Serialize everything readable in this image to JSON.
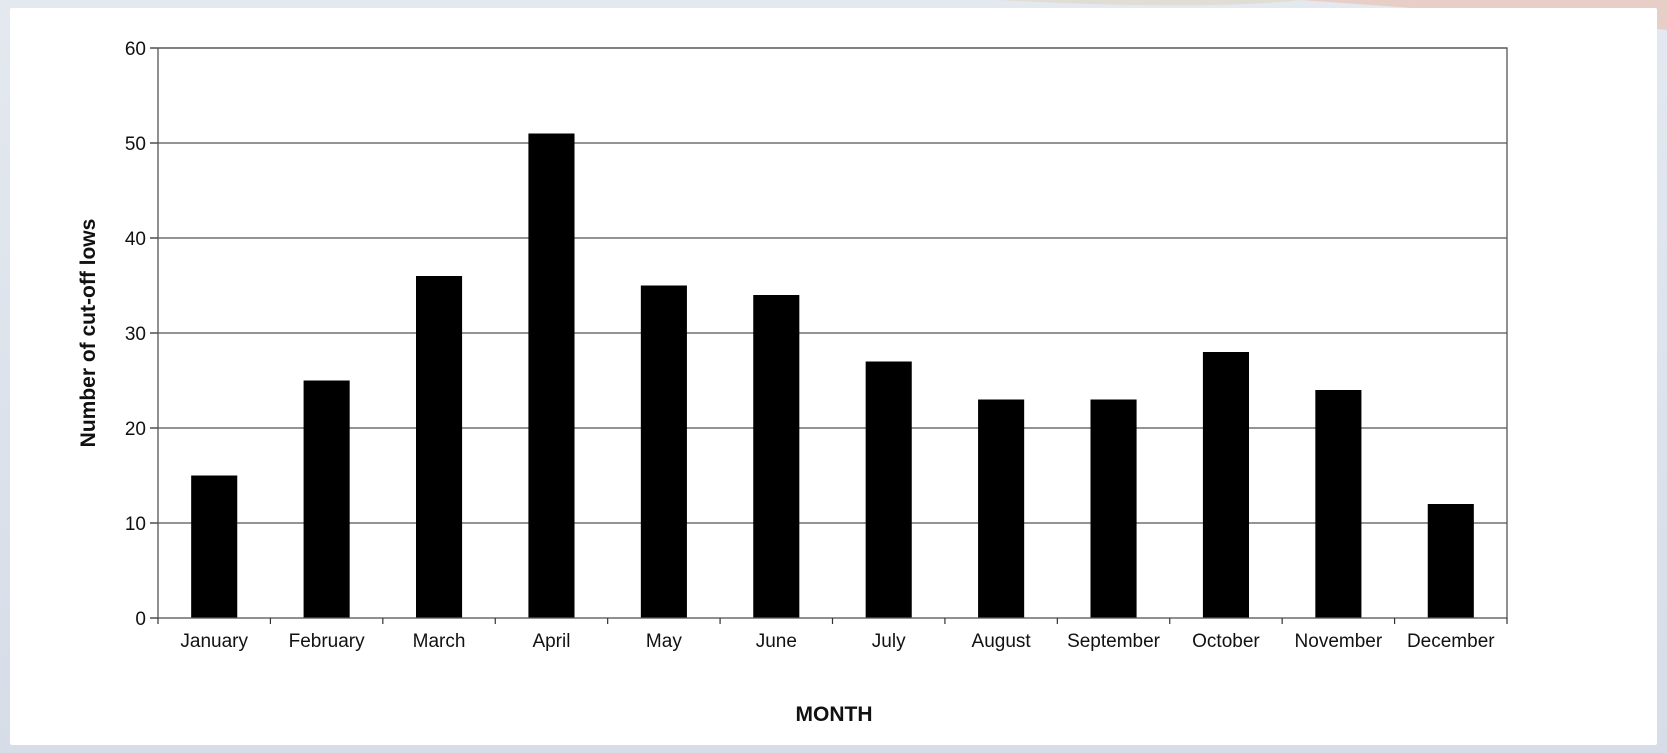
{
  "chart_data": {
    "type": "bar",
    "categories": [
      "January",
      "February",
      "March",
      "April",
      "May",
      "June",
      "July",
      "August",
      "September",
      "October",
      "November",
      "December"
    ],
    "values": [
      15,
      25,
      36,
      51,
      35,
      34,
      27,
      23,
      23,
      28,
      24,
      12
    ],
    "title": "",
    "xlabel": "MONTH",
    "ylabel": "Number of cut-off lows",
    "ylim": [
      0,
      60
    ],
    "yticks": [
      0,
      10,
      20,
      30,
      40,
      50,
      60
    ],
    "grid": true,
    "legend": "none",
    "bar_color": "#000000",
    "grid_color": "#555555",
    "background_color": "#ffffff"
  }
}
